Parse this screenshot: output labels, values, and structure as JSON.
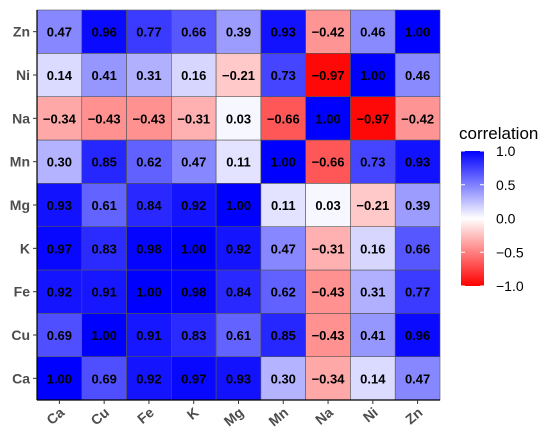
{
  "chart_data": {
    "type": "heatmap",
    "x_categories": [
      "Ca",
      "Cu",
      "Fe",
      "K",
      "Mg",
      "Mn",
      "Na",
      "Ni",
      "Zn"
    ],
    "y_categories": [
      "Ca",
      "Cu",
      "Fe",
      "K",
      "Mg",
      "Mn",
      "Na",
      "Ni",
      "Zn"
    ],
    "values": [
      [
        1.0,
        0.69,
        0.92,
        0.97,
        0.93,
        0.3,
        -0.34,
        0.14,
        0.47
      ],
      [
        0.69,
        1.0,
        0.91,
        0.83,
        0.61,
        0.85,
        -0.43,
        0.41,
        0.96
      ],
      [
        0.92,
        0.91,
        1.0,
        0.98,
        0.84,
        0.62,
        -0.43,
        0.31,
        0.77
      ],
      [
        0.97,
        0.83,
        0.98,
        1.0,
        0.92,
        0.47,
        -0.31,
        0.16,
        0.66
      ],
      [
        0.93,
        0.61,
        0.84,
        0.92,
        1.0,
        0.11,
        0.03,
        -0.21,
        0.39
      ],
      [
        0.3,
        0.85,
        0.62,
        0.47,
        0.11,
        1.0,
        -0.66,
        0.73,
        0.93
      ],
      [
        -0.34,
        -0.43,
        -0.43,
        -0.31,
        0.03,
        -0.66,
        1.0,
        -0.97,
        -0.42
      ],
      [
        0.14,
        0.41,
        0.31,
        0.16,
        -0.21,
        0.73,
        -0.97,
        1.0,
        0.46
      ],
      [
        0.47,
        0.96,
        0.77,
        0.66,
        0.39,
        0.93,
        -0.42,
        0.46,
        1.0
      ]
    ],
    "value_labels": [
      [
        "1.00",
        "0.69",
        "0.92",
        "0.97",
        "0.93",
        "0.30",
        "−0.34",
        "0.14",
        "0.47"
      ],
      [
        "0.69",
        "1.00",
        "0.91",
        "0.83",
        "0.61",
        "0.85",
        "−0.43",
        "0.41",
        "0.96"
      ],
      [
        "0.92",
        "0.91",
        "1.00",
        "0.98",
        "0.84",
        "0.62",
        "−0.43",
        "0.31",
        "0.77"
      ],
      [
        "0.97",
        "0.83",
        "0.98",
        "1.00",
        "0.92",
        "0.47",
        "−0.31",
        "0.16",
        "0.66"
      ],
      [
        "0.93",
        "0.61",
        "0.84",
        "0.92",
        "1.00",
        "0.11",
        "0.03",
        "−0.21",
        "0.39"
      ],
      [
        "0.30",
        "0.85",
        "0.62",
        "0.47",
        "0.11",
        "1.00",
        "−0.66",
        "0.73",
        "0.93"
      ],
      [
        "−0.34",
        "−0.43",
        "−0.43",
        "−0.31",
        "0.03",
        "−0.66",
        "1.00",
        "−0.97",
        "−0.42"
      ],
      [
        "0.14",
        "0.41",
        "0.31",
        "0.16",
        "−0.21",
        "0.73",
        "−0.97",
        "1.00",
        "0.46"
      ],
      [
        "0.47",
        "0.96",
        "0.77",
        "0.66",
        "0.39",
        "0.93",
        "−0.42",
        "0.46",
        "1.00"
      ]
    ],
    "legend": {
      "title": "correlation",
      "placement": "right",
      "ticks": [
        1.0,
        0.5,
        0.0,
        -0.5,
        -1.0
      ],
      "tick_labels": [
        "1.0",
        "0.5",
        "0.0",
        "−0.5",
        "−1.0"
      ],
      "range": [
        -1,
        1
      ]
    },
    "colors": {
      "low": "#ff0000",
      "mid": "#ffffff",
      "high": "#0000ff"
    },
    "grid": false
  }
}
